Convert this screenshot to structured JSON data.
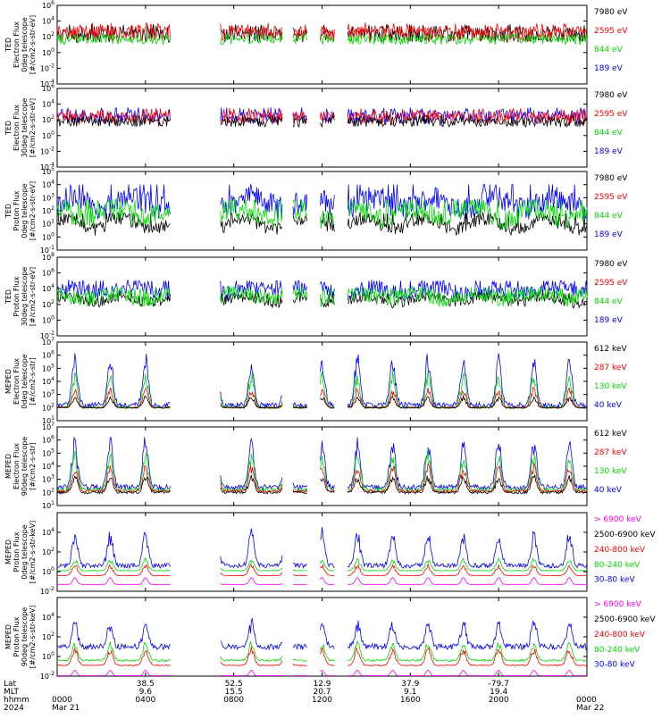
{
  "chart_data": [
    {
      "type": "line",
      "ylabel": "TED\nElectron Flux\n0deg telescope\n[#/cm2-s-str-eV]",
      "yscale": "log",
      "ylim": [
        "1e-4",
        "1e6"
      ],
      "y_ticks": [
        {
          "exp": "6"
        },
        {
          "exp": "4"
        },
        {
          "exp": "2"
        },
        {
          "exp": "0"
        },
        {
          "exp": "-2"
        },
        {
          "exp": "-4"
        }
      ],
      "legend": [
        {
          "label": "7980 eV",
          "color": "#000000"
        },
        {
          "label": "2595 eV",
          "color": "#ff0000"
        },
        {
          "label": "844 eV",
          "color": "#00dd00"
        },
        {
          "label": "189 eV",
          "color": "#0000ff"
        }
      ],
      "series": [
        {
          "name": "7980 eV",
          "color": "#000000",
          "base": 2.2,
          "spread": 0.9,
          "peak": 3.6,
          "pattern": "bursty"
        },
        {
          "name": "2595 eV",
          "color": "#ff0000",
          "base": 2.4,
          "spread": 1.0,
          "peak": 3.8,
          "pattern": "bursty"
        },
        {
          "name": "844 eV",
          "color": "#00dd00",
          "base": 1.6,
          "spread": 0.6,
          "peak": 2.4,
          "pattern": "bursty"
        }
      ]
    },
    {
      "type": "line",
      "ylabel": "TED\nElectron Flux\n30deg telescope\n[#/cm2-s-str-eV]",
      "yscale": "log",
      "ylim": [
        "1e-4",
        "1e6"
      ],
      "y_ticks": [
        {
          "exp": "6"
        },
        {
          "exp": "4"
        },
        {
          "exp": "2"
        },
        {
          "exp": "0"
        },
        {
          "exp": "-2"
        },
        {
          "exp": "-4"
        }
      ],
      "legend": [
        {
          "label": "7980 eV",
          "color": "#000000"
        },
        {
          "label": "2595 eV",
          "color": "#ff0000"
        },
        {
          "label": "844 eV",
          "color": "#00dd00"
        },
        {
          "label": "189 eV",
          "color": "#0000ff"
        }
      ],
      "series": [
        {
          "name": "189 eV",
          "color": "#0000ff",
          "base": 2.3,
          "spread": 0.8,
          "peak": 3.6,
          "pattern": "bursty"
        },
        {
          "name": "2595 eV",
          "color": "#ff0000",
          "base": 2.2,
          "spread": 0.8,
          "peak": 3.5,
          "pattern": "bursty"
        },
        {
          "name": "7980 eV",
          "color": "#000000",
          "base": 1.7,
          "spread": 0.6,
          "peak": 2.6,
          "pattern": "bursty"
        }
      ]
    },
    {
      "type": "line",
      "ylabel": "TED\nProton Flux\n0deg telescope\n[#/cm2-s-str-eV]",
      "yscale": "log",
      "ylim": [
        "1e-1",
        "1e5"
      ],
      "y_ticks": [
        {
          "exp": "5"
        },
        {
          "exp": "4"
        },
        {
          "exp": "3"
        },
        {
          "exp": "2"
        },
        {
          "exp": "1"
        },
        {
          "exp": "0"
        },
        {
          "exp": "-1"
        }
      ],
      "legend": [
        {
          "label": "7980 eV",
          "color": "#000000"
        },
        {
          "label": "2595 eV",
          "color": "#ff0000"
        },
        {
          "label": "844 eV",
          "color": "#00dd00"
        },
        {
          "label": "189 eV",
          "color": "#0000ff"
        }
      ],
      "series": [
        {
          "name": "189 eV",
          "color": "#0000ff",
          "base": 2.6,
          "spread": 0.9,
          "peak": 4.0,
          "pattern": "noisy"
        },
        {
          "name": "7980 eV",
          "color": "#000000",
          "base": 1.0,
          "spread": 0.5,
          "peak": 1.8,
          "pattern": "noisy"
        },
        {
          "name": "844 eV",
          "color": "#00dd00",
          "base": 1.8,
          "spread": 0.8,
          "peak": 2.8,
          "pattern": "noisy"
        }
      ]
    },
    {
      "type": "line",
      "ylabel": "TED\nProton Flux\n30deg telescope\n[#/cm2-s-str-eV]",
      "yscale": "log",
      "ylim": [
        "1e-2",
        "1e8"
      ],
      "y_ticks": [
        {
          "exp": "8"
        },
        {
          "exp": "6"
        },
        {
          "exp": "4"
        },
        {
          "exp": "2"
        },
        {
          "exp": "0"
        },
        {
          "exp": "-2"
        }
      ],
      "legend": [
        {
          "label": "7980 eV",
          "color": "#000000"
        },
        {
          "label": "2595 eV",
          "color": "#ff0000"
        },
        {
          "label": "844 eV",
          "color": "#00dd00"
        },
        {
          "label": "189 eV",
          "color": "#0000ff"
        }
      ],
      "series": [
        {
          "name": "189 eV",
          "color": "#0000ff",
          "base": 3.8,
          "spread": 1.0,
          "peak": 5.0,
          "pattern": "noisy"
        },
        {
          "name": "7980 eV",
          "color": "#000000",
          "base": 2.6,
          "spread": 0.7,
          "peak": 3.4,
          "pattern": "noisy"
        },
        {
          "name": "844 eV",
          "color": "#00dd00",
          "base": 3.0,
          "spread": 1.0,
          "peak": 4.0,
          "pattern": "noisy"
        }
      ]
    },
    {
      "type": "line",
      "ylabel": "MEPED\nElectron Flux\n0deg telescope\n[#/cm2-s-str]",
      "yscale": "log",
      "ylim": [
        "1e1",
        "1e7"
      ],
      "y_ticks": [
        {
          "exp": "7"
        },
        {
          "exp": "6"
        },
        {
          "exp": "5"
        },
        {
          "exp": "4"
        },
        {
          "exp": "3"
        },
        {
          "exp": "2"
        },
        {
          "exp": "1"
        }
      ],
      "legend": [
        {
          "label": "612 keV",
          "color": "#000000"
        },
        {
          "label": "287 keV",
          "color": "#ff0000"
        },
        {
          "label": "130 keV",
          "color": "#00dd00"
        },
        {
          "label": "40 keV",
          "color": "#0000ff"
        }
      ],
      "series": [
        {
          "name": "40 keV",
          "color": "#0000ff",
          "base": 2.2,
          "spread": 0.4,
          "peak": 6.2,
          "pattern": "spiky"
        },
        {
          "name": "130 keV",
          "color": "#00dd00",
          "base": 2.0,
          "spread": 0.2,
          "peak": 4.8,
          "pattern": "spiky"
        },
        {
          "name": "287 keV",
          "color": "#ff0000",
          "base": 2.0,
          "spread": 0.1,
          "peak": 3.6,
          "pattern": "spiky"
        },
        {
          "name": "612 keV",
          "color": "#000000",
          "base": 2.0,
          "spread": 0.1,
          "peak": 2.9,
          "pattern": "spiky"
        }
      ]
    },
    {
      "type": "line",
      "ylabel": "MEPED\nElectron Flux\n90deg telescope\n[#/cm2-s-str]",
      "yscale": "log",
      "ylim": [
        "1e1",
        "1e7"
      ],
      "y_ticks": [
        {
          "exp": "7"
        },
        {
          "exp": "6"
        },
        {
          "exp": "5"
        },
        {
          "exp": "4"
        },
        {
          "exp": "3"
        },
        {
          "exp": "2"
        },
        {
          "exp": "1"
        }
      ],
      "legend": [
        {
          "label": "612 keV",
          "color": "#000000"
        },
        {
          "label": "287 keV",
          "color": "#ff0000"
        },
        {
          "label": "130 keV",
          "color": "#00dd00"
        },
        {
          "label": "40 keV",
          "color": "#0000ff"
        }
      ],
      "series": [
        {
          "name": "40 keV",
          "color": "#0000ff",
          "base": 2.4,
          "spread": 0.4,
          "peak": 6.4,
          "pattern": "spiky"
        },
        {
          "name": "130 keV",
          "color": "#00dd00",
          "base": 2.2,
          "spread": 0.3,
          "peak": 5.2,
          "pattern": "spiky"
        },
        {
          "name": "287 keV",
          "color": "#ff0000",
          "base": 2.1,
          "spread": 0.2,
          "peak": 4.2,
          "pattern": "spiky"
        },
        {
          "name": "612 keV",
          "color": "#000000",
          "base": 2.0,
          "spread": 0.2,
          "peak": 3.4,
          "pattern": "spiky"
        }
      ]
    },
    {
      "type": "line",
      "ylabel": "MEPED\nProton Flux\n0deg telescope\n[#/cm2-s-str-keV]",
      "yscale": "log",
      "ylim": [
        "1e-2",
        "1e6"
      ],
      "y_ticks": [
        {
          "exp": "4"
        },
        {
          "exp": "2"
        },
        {
          "exp": "0"
        },
        {
          "exp": "-2"
        }
      ],
      "legend": [
        {
          "label": "> 6900 keV",
          "color": "#ff00ff"
        },
        {
          "label": "2500-6900 keV",
          "color": "#000000"
        },
        {
          "label": "240-800 keV",
          "color": "#ff0000"
        },
        {
          "label": "80-240 keV",
          "color": "#00dd00"
        },
        {
          "label": "30-80 keV",
          "color": "#0000ff"
        }
      ],
      "series": [
        {
          "name": "30-80 keV",
          "color": "#0000ff",
          "base": 0.6,
          "spread": 0.5,
          "peak": 4.4,
          "pattern": "spiky"
        },
        {
          "name": "80-240 keV",
          "color": "#00dd00",
          "base": 0.1,
          "spread": 0.05,
          "peak": 1.4,
          "pattern": "spiky"
        },
        {
          "name": "240-800 keV",
          "color": "#ff0000",
          "base": -0.4,
          "spread": 0.05,
          "peak": 0.8,
          "pattern": "spiky"
        },
        {
          "name": "> 6900 keV",
          "color": "#ff00ff",
          "base": -1.3,
          "spread": 0.2,
          "peak": -0.6,
          "pattern": "dips"
        }
      ]
    },
    {
      "type": "line",
      "ylabel": "MEPED\nProton Flux\n90deg telescope\n[#/cm2-s-str-keV]",
      "yscale": "log",
      "ylim": [
        "1e-2",
        "1e6"
      ],
      "y_ticks": [
        {
          "exp": "4"
        },
        {
          "exp": "2"
        },
        {
          "exp": "0"
        },
        {
          "exp": "-2"
        }
      ],
      "legend": [
        {
          "label": "> 6900 keV",
          "color": "#ff00ff"
        },
        {
          "label": "2500-6900 keV",
          "color": "#000000"
        },
        {
          "label": "240-800 keV",
          "color": "#ff0000"
        },
        {
          "label": "80-240 keV",
          "color": "#00dd00"
        },
        {
          "label": "30-80 keV",
          "color": "#0000ff"
        }
      ],
      "series": [
        {
          "name": "30-80 keV",
          "color": "#0000ff",
          "base": 1.0,
          "spread": 0.6,
          "peak": 3.8,
          "pattern": "spiky"
        },
        {
          "name": "80-240 keV",
          "color": "#00dd00",
          "base": -0.4,
          "spread": 0.2,
          "peak": 1.6,
          "pattern": "spiky"
        },
        {
          "name": "240-800 keV",
          "color": "#ff0000",
          "base": -0.9,
          "spread": 0.1,
          "peak": 1.0,
          "pattern": "spiky"
        },
        {
          "name": "> 6900 keV",
          "color": "#ff00ff",
          "base": -2.0,
          "spread": 0.2,
          "peak": -1.4,
          "pattern": "dips"
        }
      ]
    }
  ],
  "x_axis": {
    "row_labels": [
      "Lat",
      "MLT",
      "hhmm",
      "2024"
    ],
    "ticks": [
      {
        "lat": "",
        "mlt": "",
        "hhmm": "0000",
        "date": "Mar 21"
      },
      {
        "lat": "38.5",
        "mlt": "9.6",
        "hhmm": "0400",
        "date": ""
      },
      {
        "lat": "52.5",
        "mlt": "15.5",
        "hhmm": "0800",
        "date": ""
      },
      {
        "lat": "12.9",
        "mlt": "20.7",
        "hhmm": "1200",
        "date": ""
      },
      {
        "lat": "37.9",
        "mlt": "9.1",
        "hhmm": "1600",
        "date": ""
      },
      {
        "lat": "-79.7",
        "mlt": "19.4",
        "hhmm": "2000",
        "date": ""
      },
      {
        "lat": "",
        "mlt": "",
        "hhmm": "0000",
        "date": "Mar 22"
      }
    ]
  },
  "data_gaps_hours": [
    [
      5.15,
      7.4
    ],
    [
      10.2,
      10.65
    ],
    [
      11.35,
      11.9
    ],
    [
      12.6,
      13.15
    ]
  ]
}
